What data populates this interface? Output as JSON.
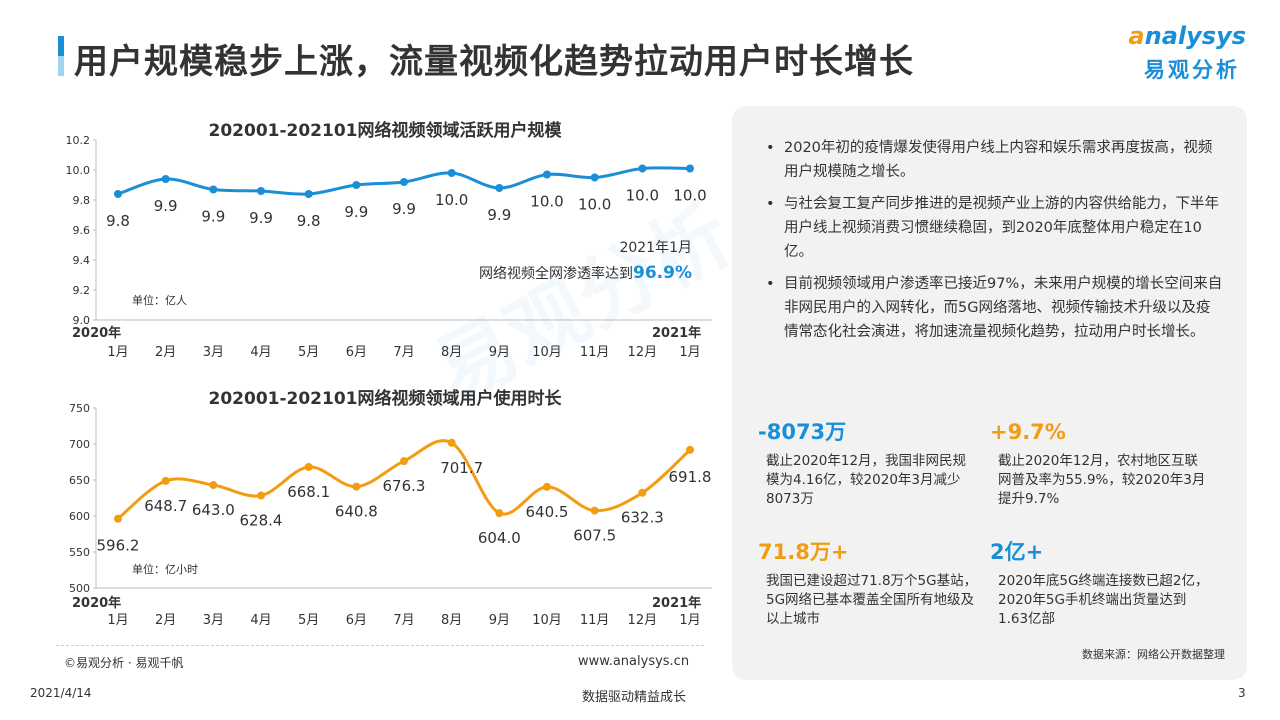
{
  "header": {
    "title": "用户规模稳步上涨，流量视频化趋势拉动用户时长增长",
    "logo_en_initial": "a",
    "logo_en_rest": "nalysys",
    "logo_cn": "易观分析"
  },
  "chart_data": [
    {
      "type": "line",
      "title": "202001-202101网络视频领域活跃用户规模",
      "categories": [
        "1月",
        "2月",
        "3月",
        "4月",
        "5月",
        "6月",
        "7月",
        "8月",
        "9月",
        "10月",
        "11月",
        "12月",
        "1月"
      ],
      "year_start": "2020年",
      "year_end": "2021年",
      "values": [
        9.84,
        9.94,
        9.87,
        9.86,
        9.84,
        9.9,
        9.92,
        9.98,
        9.88,
        9.97,
        9.95,
        10.01,
        10.01
      ],
      "data_labels": [
        "9.8",
        "9.9",
        "9.9",
        "9.9",
        "9.8",
        "9.9",
        "9.9",
        "10.0",
        "9.9",
        "10.0",
        "10.0",
        "10.0",
        "10.0"
      ],
      "ylim": [
        9.0,
        10.2
      ],
      "yticks": [
        "9.0",
        "9.2",
        "9.4",
        "9.6",
        "9.8",
        "10.0",
        "10.2"
      ],
      "unit": "单位：亿人",
      "color": "#1a8fd8",
      "annotation_line1": "2021年1月",
      "annotation_line2": "网络视频全网渗透率达到",
      "annotation_value": "96.9%"
    },
    {
      "type": "line",
      "title": "202001-202101网络视频领域用户使用时长",
      "categories": [
        "1月",
        "2月",
        "3月",
        "4月",
        "5月",
        "6月",
        "7月",
        "8月",
        "9月",
        "10月",
        "11月",
        "12月",
        "1月"
      ],
      "year_start": "2020年",
      "year_end": "2021年",
      "values": [
        596.2,
        648.7,
        643.0,
        628.4,
        668.1,
        640.8,
        676.3,
        701.7,
        604.0,
        640.5,
        607.5,
        632.3,
        691.8
      ],
      "data_labels": [
        "596.2",
        "648.7",
        "643.0",
        "628.4",
        "668.1",
        "640.8",
        "676.3",
        "701.7",
        "604.0",
        "640.5",
        "607.5",
        "632.3",
        "691.8"
      ],
      "ylim": [
        500,
        750
      ],
      "yticks": [
        "500",
        "550",
        "600",
        "650",
        "700",
        "750"
      ],
      "unit": "单位：亿小时",
      "color": "#f39c12"
    }
  ],
  "footer_left": {
    "copyright": "©易观分析 · 易观千帆",
    "website": "www.analysys.cn"
  },
  "panel": {
    "bullets": [
      "2020年初的疫情爆发使得用户线上内容和娱乐需求再度拔高，视频用户规模随之增长。",
      "与社会复工复产同步推进的是视频产业上游的内容供给能力，下半年用户线上视频消费习惯继续稳固，到2020年底整体用户稳定在10亿。",
      "目前视频领域用户渗透率已接近97%，未来用户规模的增长空间来自非网民用户的入网转化，而5G网络落地、视频传输技术升级以及疫情常态化社会演进，将加速流量视频化趋势，拉动用户时长增长。"
    ],
    "stats": [
      {
        "value": "-8073万",
        "desc": "截止2020年12月，我国非网民规模为4.16亿，较2020年3月减少8073万"
      },
      {
        "value": "+9.7%",
        "desc": "截止2020年12月，农村地区互联网普及率为55.9%，较2020年3月提升9.7%"
      },
      {
        "value": "71.8万+",
        "desc": "我国已建设超过71.8万个5G基站，5G网络已基本覆盖全国所有地级及以上城市"
      },
      {
        "value": "2亿+",
        "desc": "2020年底5G终端连接数已超2亿，2020年5G手机终端出货量达到1.63亿部"
      }
    ],
    "source": "数据来源：网络公开数据整理"
  },
  "footer": {
    "date": "2021/4/14",
    "slogan": "数据驱动精益成长",
    "page": "3"
  },
  "watermark": "易观分析"
}
